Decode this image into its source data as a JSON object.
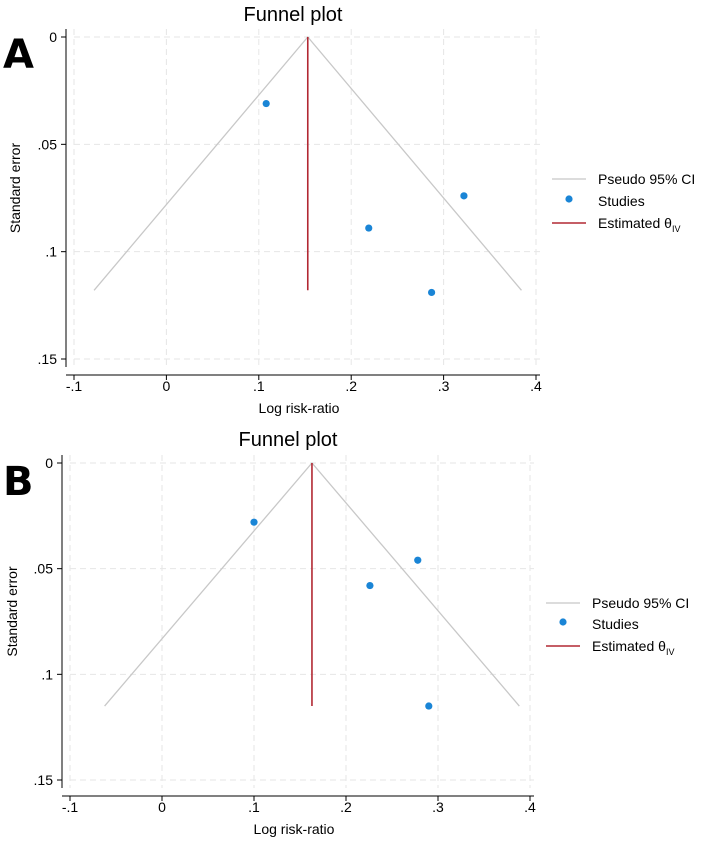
{
  "chart_data": [
    {
      "panel": "A",
      "type": "scatter",
      "title": "Funnel plot",
      "xlabel": "Log risk-ratio",
      "ylabel": "Standard error",
      "xlim": [
        -0.1,
        0.4
      ],
      "ylim": [
        0,
        0.15
      ],
      "y_reversed": true,
      "grid": true,
      "x_ticks": [
        -0.1,
        0,
        0.1,
        0.2,
        0.3,
        0.4
      ],
      "x_tick_labels": [
        "-.1",
        "0",
        ".1",
        ".2",
        ".3",
        ".4"
      ],
      "y_ticks": [
        0,
        0.05,
        0.1,
        0.15
      ],
      "y_tick_labels": [
        "0",
        ".05",
        ".1",
        ".15"
      ],
      "estimate": 0.153,
      "se_max": 0.118,
      "series": [
        {
          "name": "Studies",
          "points": [
            {
              "x": 0.108,
              "y": 0.031
            },
            {
              "x": 0.219,
              "y": 0.089
            },
            {
              "x": 0.287,
              "y": 0.119
            },
            {
              "x": 0.322,
              "y": 0.074
            }
          ]
        }
      ],
      "legend": {
        "position": "right",
        "ci_label": "Pseudo 95% CI",
        "studies_label": "Studies",
        "estimate_label": "Estimated θ",
        "estimate_sub": "IV"
      }
    },
    {
      "panel": "B",
      "type": "scatter",
      "title": "Funnel plot",
      "xlabel": "Log risk-ratio",
      "ylabel": "Standard error",
      "xlim": [
        -0.1,
        0.4
      ],
      "ylim": [
        0,
        0.15
      ],
      "y_reversed": true,
      "grid": true,
      "x_ticks": [
        -0.1,
        0,
        0.1,
        0.2,
        0.3,
        0.4
      ],
      "x_tick_labels": [
        "-.1",
        "0",
        ".1",
        ".2",
        ".3",
        ".4"
      ],
      "y_ticks": [
        0,
        0.05,
        0.1,
        0.15
      ],
      "y_tick_labels": [
        "0",
        ".05",
        ".1",
        ".15"
      ],
      "estimate": 0.163,
      "se_max": 0.115,
      "series": [
        {
          "name": "Studies",
          "points": [
            {
              "x": 0.1,
              "y": 0.028
            },
            {
              "x": 0.226,
              "y": 0.058
            },
            {
              "x": 0.278,
              "y": 0.046
            },
            {
              "x": 0.29,
              "y": 0.115
            }
          ]
        }
      ],
      "legend": {
        "position": "right",
        "ci_label": "Pseudo 95% CI",
        "studies_label": "Studies",
        "estimate_label": "Estimated θ",
        "estimate_sub": "IV"
      }
    }
  ],
  "colors": {
    "ci_line": "#c8c8c8",
    "grid": "#e6e6e6",
    "study_point": "#1a85d6",
    "estimate_line": "#b22833",
    "axis": "#000000"
  }
}
